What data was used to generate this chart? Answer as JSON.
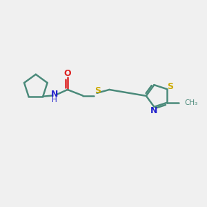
{
  "bg_color": "#f0f0f0",
  "bond_color": "#4a8a7a",
  "N_color": "#2222cc",
  "O_color": "#dd2222",
  "S_color": "#ccaa00",
  "line_width": 1.8,
  "fig_width": 3.0,
  "fig_height": 3.0,
  "dpi": 100,
  "xlim": [
    0,
    12
  ],
  "ylim": [
    0,
    10
  ]
}
